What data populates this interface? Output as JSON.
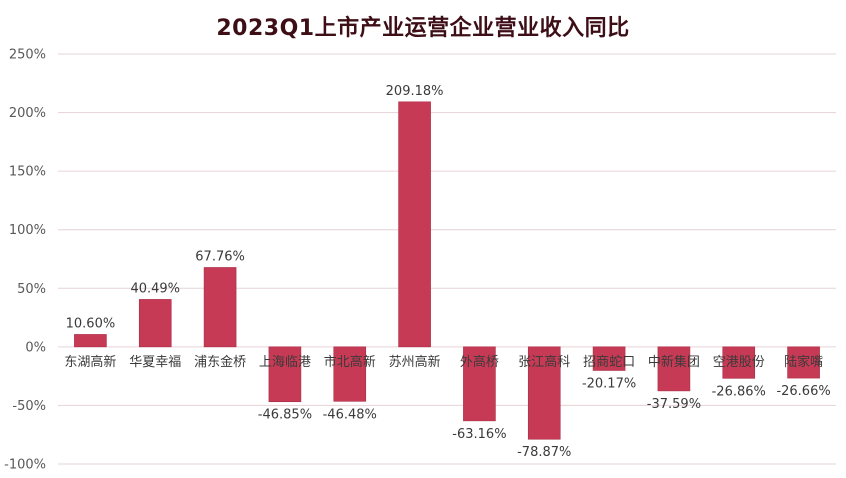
{
  "title": "2023Q1上市产业运营企业营业收入同比",
  "colors": {
    "bar": "#c73a55",
    "bar_stroke": "#a92e46",
    "grid": "#e6d3d6",
    "title": "#3d0e16"
  },
  "chart_data": {
    "type": "bar",
    "title": "2023Q1上市产业运营企业营业收入同比",
    "categories": [
      "东湖高新",
      "华夏幸福",
      "浦东金桥",
      "上海临港",
      "市北高新",
      "苏州高新",
      "外高桥",
      "张江高科",
      "招商蛇口",
      "中新集团",
      "空港股份",
      "陆家嘴"
    ],
    "values": [
      10.6,
      40.49,
      67.76,
      -46.85,
      -46.48,
      209.18,
      -63.16,
      -78.87,
      -20.17,
      -37.59,
      -26.86,
      -26.66
    ],
    "value_labels": [
      "10.60%",
      "40.49%",
      "67.76%",
      "-46.85%",
      "-46.48%",
      "209.18%",
      "-63.16%",
      "-78.87%",
      "-20.17%",
      "-37.59%",
      "-26.86%",
      "-26.66%"
    ],
    "yticks": [
      250,
      200,
      150,
      100,
      50,
      0,
      -50,
      -100
    ],
    "ytick_labels": [
      "250%",
      "200%",
      "150%",
      "100%",
      "50%",
      "0%",
      "-50%",
      "-100%"
    ],
    "ylim": [
      -100,
      250
    ],
    "xlabel": "",
    "ylabel": "",
    "grid": true,
    "legend": "none"
  }
}
